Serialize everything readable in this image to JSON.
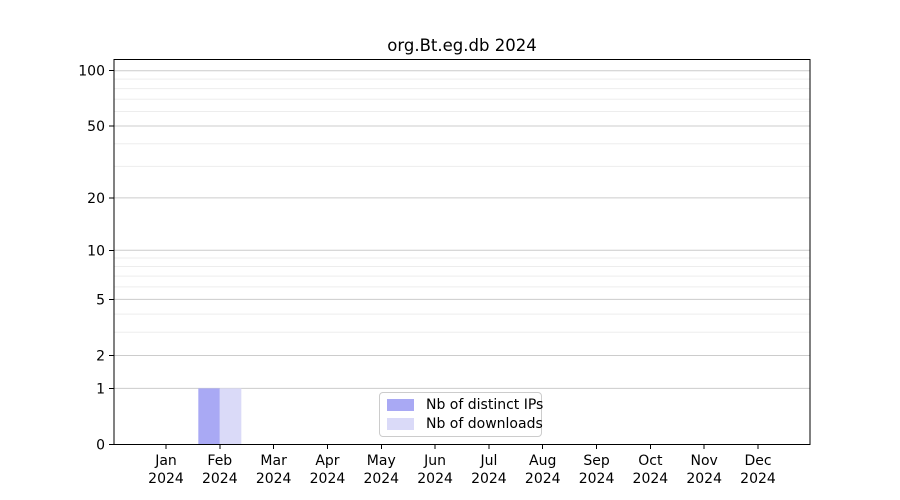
{
  "chart_data": {
    "type": "bar",
    "title": "org.Bt.eg.db 2024",
    "categories": [
      "Jan",
      "Feb",
      "Mar",
      "Apr",
      "May",
      "Jun",
      "Jul",
      "Aug",
      "Sep",
      "Oct",
      "Nov",
      "Dec"
    ],
    "category_year": "2024",
    "series": [
      {
        "name": "Nb of distinct IPs",
        "color": "#a9a9f4",
        "values": [
          0,
          1,
          0,
          0,
          0,
          0,
          0,
          0,
          0,
          0,
          0,
          0
        ]
      },
      {
        "name": "Nb of downloads",
        "color": "#dadaf8",
        "values": [
          0,
          1,
          0,
          0,
          0,
          0,
          0,
          0,
          0,
          0,
          0,
          0
        ]
      }
    ],
    "xlabel": "",
    "ylabel": "",
    "yscale": "log1p",
    "ylim": [
      0,
      115
    ],
    "yticks": [
      0,
      1,
      2,
      5,
      10,
      20,
      50,
      100
    ],
    "yticks_minor": [
      3,
      4,
      6,
      7,
      8,
      9,
      30,
      40,
      60,
      70,
      80,
      90
    ],
    "grid": {
      "major_color": "#cccccc",
      "minor_color": "#ededed",
      "on": true
    },
    "legend": {
      "position": "bottom-center",
      "border_color": "#cccccc"
    },
    "axis_color": "#000000",
    "background": "#ffffff"
  }
}
